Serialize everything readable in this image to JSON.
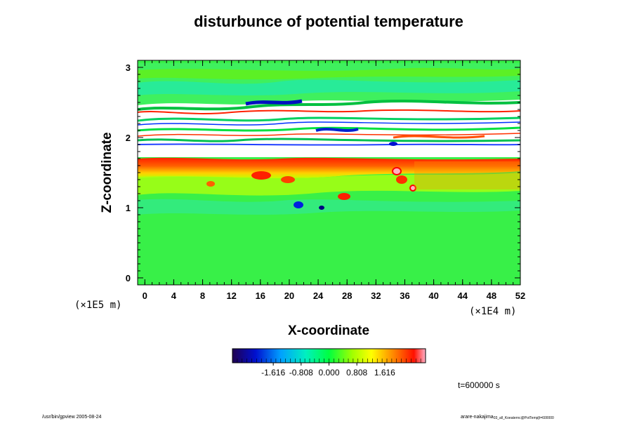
{
  "chart_data": {
    "type": "heatmap",
    "title": "disturbunce of potential temperature",
    "xlabel": "X-coordinate",
    "ylabel": "Z-coordinate",
    "x_scale_label": "(×1E4 m)",
    "y_scale_label": "(×1E5 m)",
    "xlim": [
      -1,
      52
    ],
    "ylim": [
      -0.1,
      3.1
    ],
    "x_ticks": [
      0,
      4,
      8,
      12,
      16,
      20,
      24,
      28,
      32,
      36,
      40,
      44,
      48,
      52
    ],
    "y_ticks": [
      0,
      1,
      2,
      3
    ],
    "colorbar": {
      "range": [
        -2.8,
        2.8
      ],
      "tick_values": [
        -1.616,
        -0.808,
        0.0,
        0.808,
        1.616
      ],
      "tick_labels": [
        "-1.616",
        "-0.808",
        "0.000",
        "0.808",
        "1.616"
      ]
    },
    "time_label": "t=600000 s",
    "features": [
      {
        "z": [
          1.65,
          1.7
        ],
        "level": 1.7
      },
      {
        "z": [
          1.45,
          1.62
        ],
        "level": 0.6
      },
      {
        "z": [
          1.0,
          1.4
        ],
        "level": 0.3
      },
      {
        "z": [
          2.05,
          2.6
        ],
        "level": -0.4
      },
      {
        "z": [
          2.6,
          3.0
        ],
        "level": 0.3
      }
    ],
    "colors": {
      "low": "#200060",
      "mid_low": "#0000ff",
      "mid": "#00ff60",
      "mid_high": "#ffff00",
      "high": "#ff0000",
      "top": "#ffb0c0"
    }
  },
  "footer": {
    "left": "/usr/bin/gpview 2005-08-24",
    "right": "arare-nakajima",
    "right_sub": "03_all_Koeaternc@PotTemp[t=600000"
  }
}
